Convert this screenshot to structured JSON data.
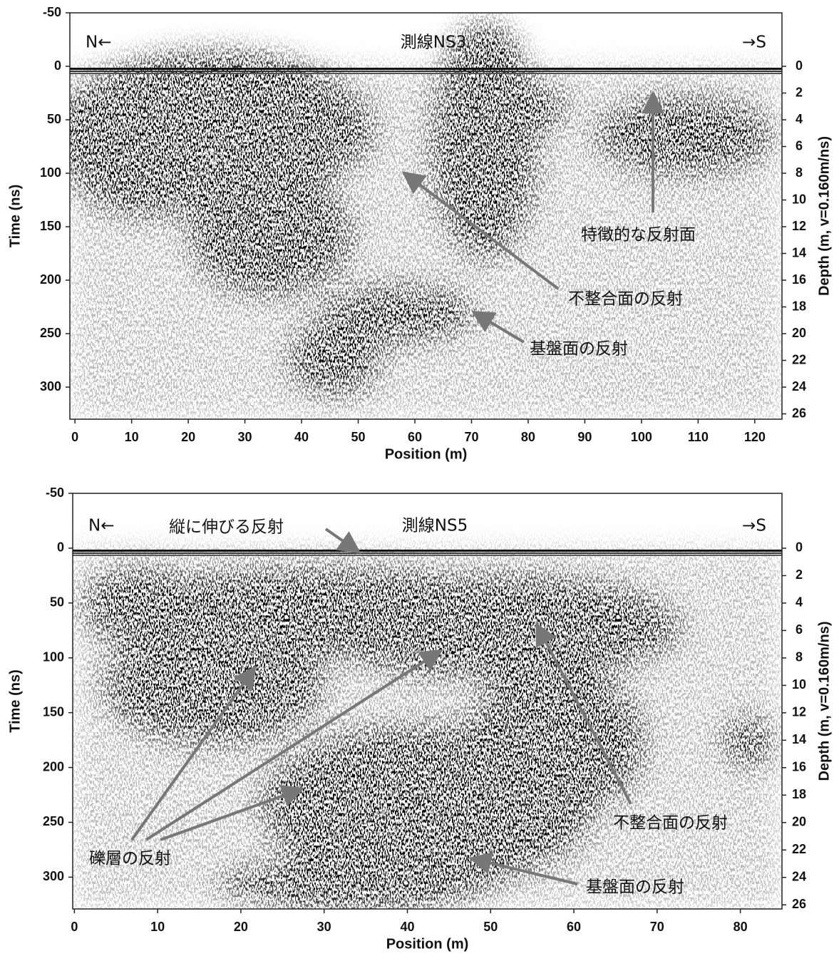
{
  "chart_data": [
    {
      "type": "radargram",
      "title": "測線NS3",
      "left_label": "N←",
      "right_label": "→S",
      "xlabel": "Position (m)",
      "ylabel": "Time (ns)",
      "y2label": "Depth (m, v=0.160m/ns)",
      "xlim": [
        -0.9,
        124.8
      ],
      "xticks": [
        0,
        10,
        20,
        30,
        40,
        50,
        60,
        70,
        80,
        90,
        100,
        110,
        120
      ],
      "ylim": [
        -50,
        330
      ],
      "yticks": [
        -50,
        0,
        50,
        100,
        150,
        200,
        250,
        300
      ],
      "y2lim": [
        -4,
        26.4
      ],
      "y2ticks": [
        0,
        2,
        4,
        6,
        8,
        10,
        12,
        14,
        16,
        18,
        20,
        22,
        24,
        26
      ],
      "y_reversed": true,
      "annotations": [
        "特徴的な反射面",
        "不整合面の反射",
        "基盤面の反射"
      ]
    },
    {
      "type": "radargram",
      "title": "測線NS5",
      "left_label": "N←",
      "right_label": "→S",
      "xlabel": "Position (m)",
      "ylabel": "Time (ns)",
      "y2label": "Depth (m, v=0.160m/ns)",
      "xlim": [
        -0.2,
        85
      ],
      "xticks": [
        0,
        10,
        20,
        30,
        40,
        50,
        60,
        70,
        80
      ],
      "ylim": [
        -50,
        329
      ],
      "yticks": [
        -50,
        0,
        50,
        100,
        150,
        200,
        250,
        300
      ],
      "y2lim": [
        -4,
        26.3
      ],
      "y2ticks": [
        0,
        2,
        4,
        6,
        8,
        10,
        12,
        14,
        16,
        18,
        20,
        22,
        24,
        26
      ],
      "y_reversed": true,
      "annotations": [
        "縦に伸びる反射",
        "不整合面の反射",
        "礫層の反射",
        "基盤面の反射"
      ]
    }
  ]
}
